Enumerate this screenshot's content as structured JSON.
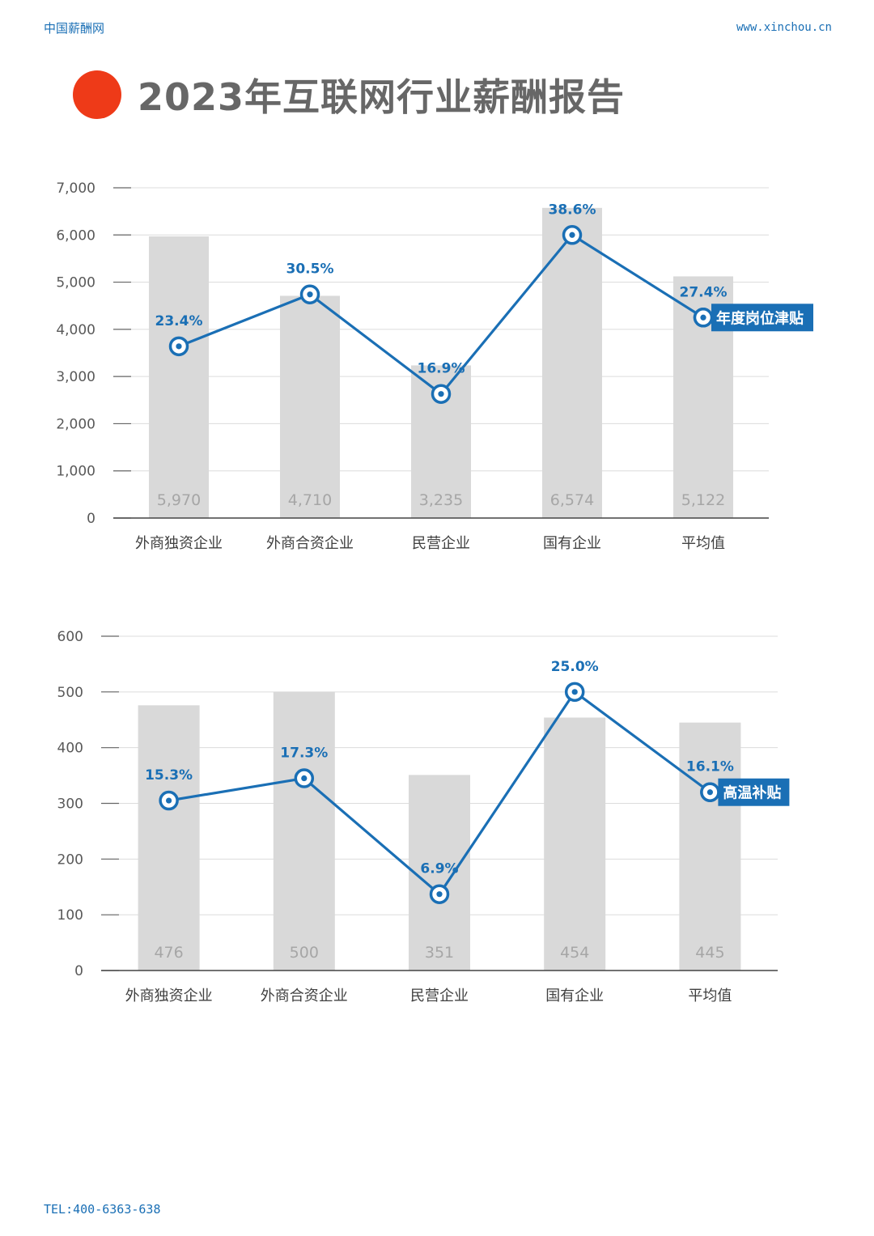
{
  "header": {
    "site_name": "中国薪酬网",
    "url": "www.xinchou.cn"
  },
  "title": "2023年互联网行业薪酬报告",
  "footer": {
    "tel": "TEL:400-6363-638"
  },
  "colors": {
    "accent_dot": "#ee3a18",
    "line": "#1a6fb5",
    "bar": "#d9d9d9"
  },
  "chart_data": [
    {
      "type": "bar+line",
      "categories": [
        "外商独资企业",
        "外商合资企业",
        "民营企业",
        "国有企业",
        "平均值"
      ],
      "bar_values": [
        5970,
        4710,
        3235,
        6574,
        5122
      ],
      "bar_labels": [
        "5,970",
        "4,710",
        "3,235",
        "6,574",
        "5,122"
      ],
      "line_values": [
        3640,
        4740,
        2630,
        6000,
        4250
      ],
      "line_labels": [
        "23.4%",
        "30.5%",
        "16.9%",
        "38.6%",
        "27.4%"
      ],
      "series_label": "年度岗位津贴",
      "ylim": [
        0,
        7000
      ],
      "yticks": [
        0,
        1000,
        2000,
        3000,
        4000,
        5000,
        6000,
        7000
      ],
      "ytick_labels": [
        "0",
        "1,000",
        "2,000",
        "3,000",
        "4,000",
        "5,000",
        "6,000",
        "7,000"
      ],
      "grid": true
    },
    {
      "type": "bar+line",
      "categories": [
        "外商独资企业",
        "外商合资企业",
        "民营企业",
        "国有企业",
        "平均值"
      ],
      "bar_values": [
        476,
        500,
        351,
        454,
        445
      ],
      "bar_labels": [
        "476",
        "500",
        "351",
        "454",
        "445"
      ],
      "line_values": [
        305,
        345,
        137,
        500,
        320
      ],
      "line_labels": [
        "15.3%",
        "17.3%",
        "6.9%",
        "25.0%",
        "16.1%"
      ],
      "series_label": "高温补贴",
      "ylim": [
        0,
        600
      ],
      "yticks": [
        0,
        100,
        200,
        300,
        400,
        500,
        600
      ],
      "ytick_labels": [
        "0",
        "100",
        "200",
        "300",
        "400",
        "500",
        "600"
      ],
      "grid": true
    }
  ]
}
